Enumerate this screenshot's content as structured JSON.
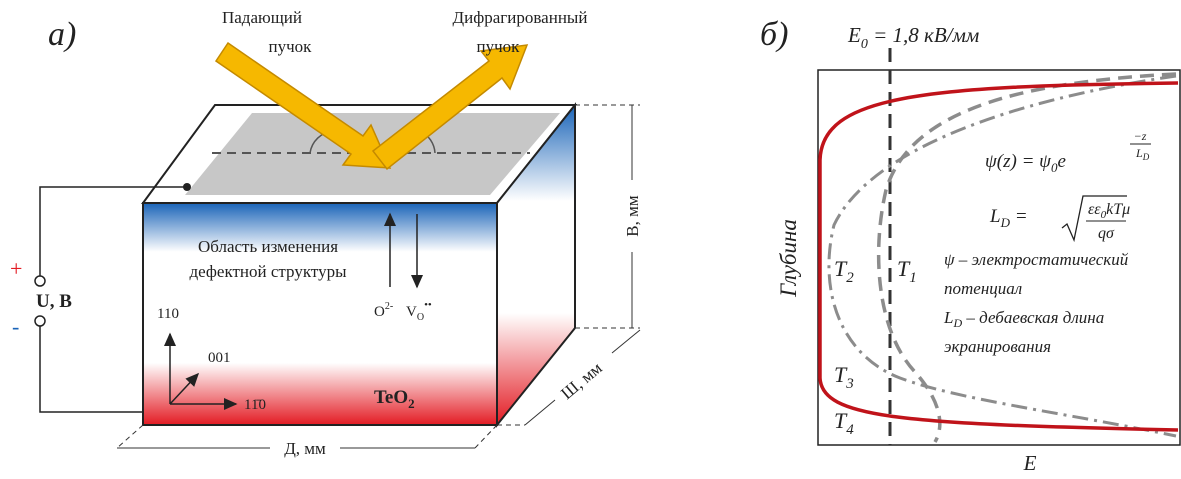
{
  "panel_a": {
    "label": "а)",
    "incident_beam": [
      "Падающий",
      "пучок"
    ],
    "diffracted_beam": [
      "Дифрагированный",
      "пучок"
    ],
    "region_label": [
      "Область изменения",
      "дефектной структуры"
    ],
    "ion_o": {
      "base": "O",
      "sup": "2-"
    },
    "vacancy": {
      "base": "V",
      "sub": "O",
      "sup": "••"
    },
    "axes": {
      "vertical": "110",
      "diagonal": "001",
      "horizontal": "11̄0"
    },
    "crystal": {
      "base": "TeO",
      "sub": "2"
    },
    "dimensions": {
      "length": "Д, мм",
      "width": "Ш, мм",
      "height": "В, мм"
    },
    "voltage": {
      "plus": "+",
      "minus": "-",
      "label": "U, В"
    }
  },
  "panel_b": {
    "label": "б)",
    "field": {
      "base": "E",
      "sub": "0",
      "rest": " = 1,8 кВ/мм"
    },
    "y_axis": "Глубина",
    "x_axis": "E",
    "temperatures": [
      {
        "base": "T",
        "sub": "1"
      },
      {
        "base": "T",
        "sub": "2"
      },
      {
        "base": "T",
        "sub": "3"
      },
      {
        "base": "T",
        "sub": "4"
      }
    ],
    "psi_formula": {
      "lhs": "ψ(z) = ψ",
      "sub": "0",
      "exp_base": "e",
      "exp_num": "−z",
      "exp_den": "L",
      "exp_den_sub": "D"
    },
    "debye_formula": {
      "lhs": "L",
      "lhs_sub": "D",
      "eq": "=",
      "num_a": "εε",
      "num_sub": "0",
      "num_b": "kTμ",
      "den": "qσ"
    },
    "description": {
      "line1": "ψ – электростатический",
      "line2": "потенциал",
      "line3_base": "L",
      "line3_sub": "D",
      "line3_rest": " – дебаевская длина",
      "line4": "экранирования"
    }
  }
}
